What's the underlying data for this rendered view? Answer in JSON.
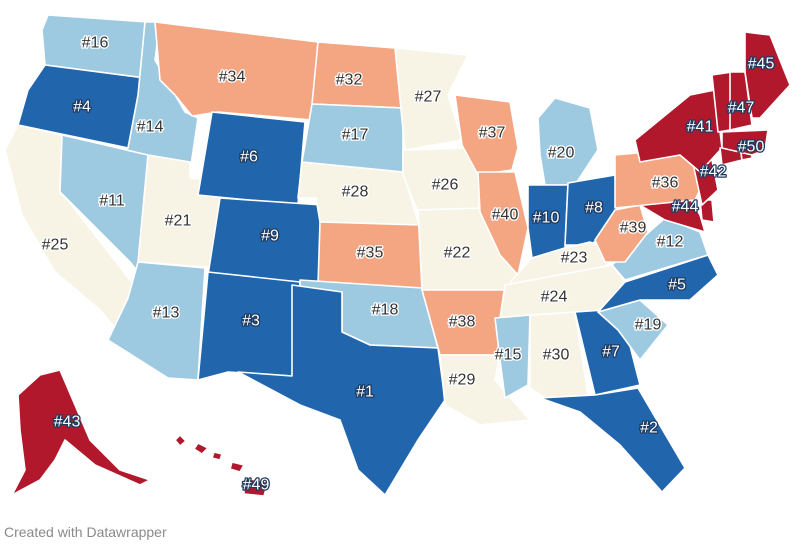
{
  "credit": "Created with Datawrapper",
  "colors": {
    "rank_1_10": "#2166ac",
    "rank_11_20": "#9ecae1",
    "rank_21_30": "#f7f4e6",
    "rank_31_40": "#f4a582",
    "rank_41_50": "#b2182b"
  },
  "states": [
    {
      "state": "WA",
      "rank": 16,
      "label": "#16"
    },
    {
      "state": "OR",
      "rank": 4,
      "label": "#4"
    },
    {
      "state": "CA",
      "rank": 25,
      "label": "#25"
    },
    {
      "state": "ID",
      "rank": 14,
      "label": "#14"
    },
    {
      "state": "NV",
      "rank": 11,
      "label": "#11"
    },
    {
      "state": "UT",
      "rank": 21,
      "label": "#21"
    },
    {
      "state": "AZ",
      "rank": 13,
      "label": "#13"
    },
    {
      "state": "MT",
      "rank": 34,
      "label": "#34"
    },
    {
      "state": "WY",
      "rank": 6,
      "label": "#6"
    },
    {
      "state": "CO",
      "rank": 9,
      "label": "#9"
    },
    {
      "state": "NM",
      "rank": 3,
      "label": "#3"
    },
    {
      "state": "ND",
      "rank": 32,
      "label": "#32"
    },
    {
      "state": "SD",
      "rank": 17,
      "label": "#17"
    },
    {
      "state": "NE",
      "rank": 28,
      "label": "#28"
    },
    {
      "state": "KS",
      "rank": 35,
      "label": "#35"
    },
    {
      "state": "OK",
      "rank": 18,
      "label": "#18"
    },
    {
      "state": "TX",
      "rank": 1,
      "label": "#1"
    },
    {
      "state": "MN",
      "rank": 27,
      "label": "#27"
    },
    {
      "state": "IA",
      "rank": 26,
      "label": "#26"
    },
    {
      "state": "MO",
      "rank": 22,
      "label": "#22"
    },
    {
      "state": "AR",
      "rank": 38,
      "label": "#38"
    },
    {
      "state": "LA",
      "rank": 29,
      "label": "#29"
    },
    {
      "state": "WI",
      "rank": 37,
      "label": "#37"
    },
    {
      "state": "IL",
      "rank": 40,
      "label": "#40"
    },
    {
      "state": "MI",
      "rank": 20,
      "label": "#20"
    },
    {
      "state": "IN",
      "rank": 10,
      "label": "#10"
    },
    {
      "state": "OH",
      "rank": 8,
      "label": "#8"
    },
    {
      "state": "KY",
      "rank": 23,
      "label": "#23"
    },
    {
      "state": "TN",
      "rank": 24,
      "label": "#24"
    },
    {
      "state": "MS",
      "rank": 15,
      "label": "#15"
    },
    {
      "state": "AL",
      "rank": 30,
      "label": "#30"
    },
    {
      "state": "GA",
      "rank": 7,
      "label": "#7"
    },
    {
      "state": "FL",
      "rank": 2,
      "label": "#2"
    },
    {
      "state": "SC",
      "rank": 19,
      "label": "#19"
    },
    {
      "state": "NC",
      "rank": 5,
      "label": "#5"
    },
    {
      "state": "VA",
      "rank": 12,
      "label": "#12"
    },
    {
      "state": "WV",
      "rank": 39,
      "label": "#39"
    },
    {
      "state": "MD",
      "rank": 44,
      "label": "#44"
    },
    {
      "state": "DE",
      "rank": null,
      "label": ""
    },
    {
      "state": "PA",
      "rank": 36,
      "label": "#36"
    },
    {
      "state": "NJ",
      "rank": 42,
      "label": "#42"
    },
    {
      "state": "NY",
      "rank": 41,
      "label": "#41"
    },
    {
      "state": "CT",
      "rank": null,
      "label": ""
    },
    {
      "state": "RI",
      "rank": null,
      "label": ""
    },
    {
      "state": "MA",
      "rank": 50,
      "label": "#50"
    },
    {
      "state": "VT",
      "rank": null,
      "label": ""
    },
    {
      "state": "NH",
      "rank": 47,
      "label": "#47"
    },
    {
      "state": "ME",
      "rank": 45,
      "label": "#45"
    },
    {
      "state": "AK",
      "rank": 43,
      "label": "#43"
    },
    {
      "state": "HI",
      "rank": 49,
      "label": "#49"
    }
  ]
}
